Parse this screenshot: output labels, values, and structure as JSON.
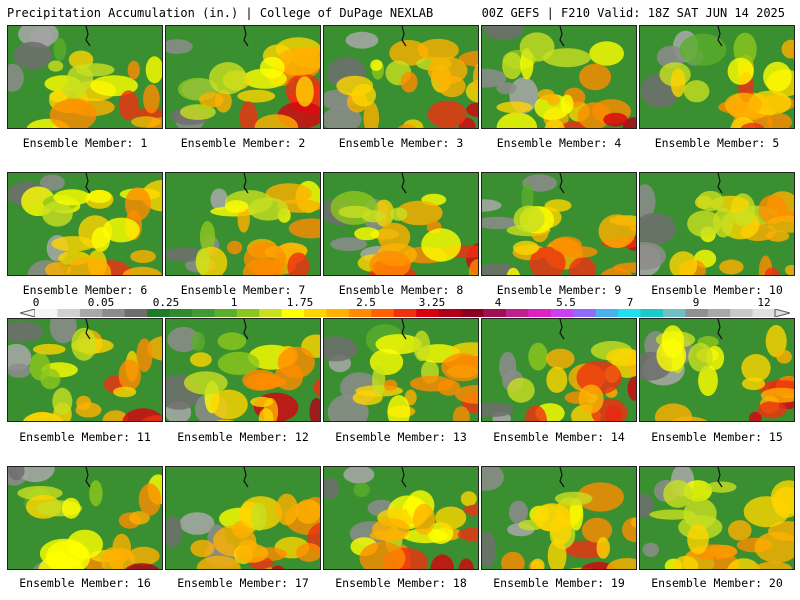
{
  "header": {
    "title": "Precipitation Accumulation (in.) | College of DuPage NEXLAB",
    "valid": "00Z GEFS | F210 Valid: 18Z SAT JUN 14 2025"
  },
  "colorbar": {
    "labels": [
      "0",
      "0.05",
      "0.25",
      "1",
      "1.75",
      "2.5",
      "3.25",
      "4",
      "5.5",
      "7",
      "9",
      "12"
    ],
    "colors": [
      "#f4f4f4",
      "#d0d0d0",
      "#a8a8a8",
      "#8c8c8c",
      "#6e6e6e",
      "#1f7a2a",
      "#2e8b2e",
      "#3f9a32",
      "#5aae2a",
      "#8cc71e",
      "#c8e020",
      "#ffff00",
      "#ffd400",
      "#ffb000",
      "#ff8c00",
      "#ff6000",
      "#f03010",
      "#d80010",
      "#b00018",
      "#8c0020",
      "#a01050",
      "#c0208c",
      "#e020c0",
      "#cc40f0",
      "#8c6cf8",
      "#4cb0f0",
      "#20e0f0",
      "#1cc8c8",
      "#70c0c0",
      "#909090",
      "#a8a8a8",
      "#c8c8c8",
      "#e0e0e0"
    ]
  },
  "members": [
    {
      "caption": "Ensemble Member: 1"
    },
    {
      "caption": "Ensemble Member: 2"
    },
    {
      "caption": "Ensemble Member: 3"
    },
    {
      "caption": "Ensemble Member: 4"
    },
    {
      "caption": "Ensemble Member: 5"
    },
    {
      "caption": "Ensemble Member: 6"
    },
    {
      "caption": "Ensemble Member: 7"
    },
    {
      "caption": "Ensemble Member: 8"
    },
    {
      "caption": "Ensemble Member: 9"
    },
    {
      "caption": "Ensemble Member: 10"
    },
    {
      "caption": "Ensemble Member: 11"
    },
    {
      "caption": "Ensemble Member: 12"
    },
    {
      "caption": "Ensemble Member: 13"
    },
    {
      "caption": "Ensemble Member: 14"
    },
    {
      "caption": "Ensemble Member: 15"
    },
    {
      "caption": "Ensemble Member: 16"
    },
    {
      "caption": "Ensemble Member: 17"
    },
    {
      "caption": "Ensemble Member: 18"
    },
    {
      "caption": "Ensemble Member: 19"
    },
    {
      "caption": "Ensemble Member: 20"
    }
  ]
}
